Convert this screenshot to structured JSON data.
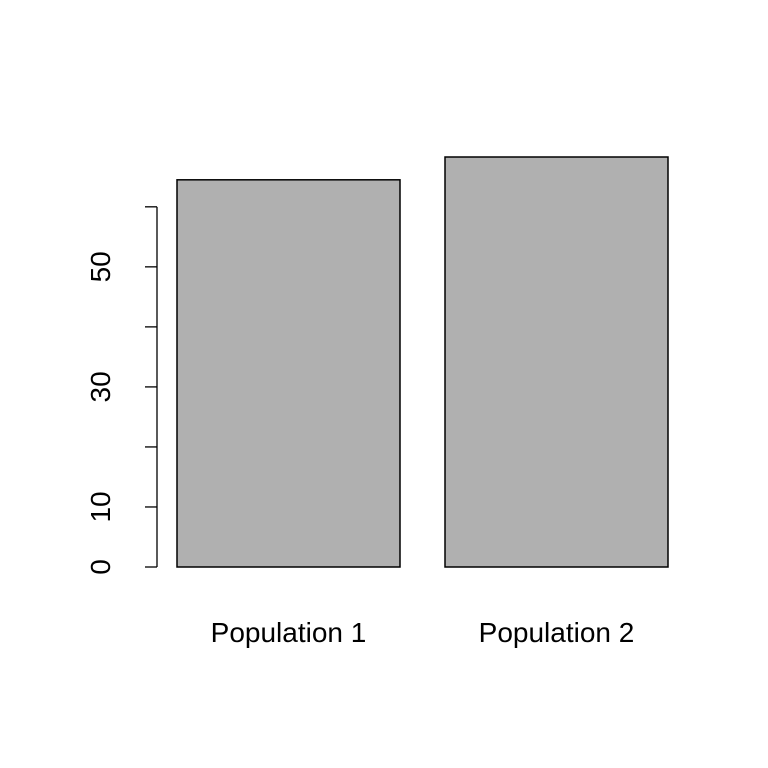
{
  "chart_data": {
    "type": "bar",
    "categories": [
      "Population 1",
      "Population 2"
    ],
    "values": [
      64.5,
      68.3
    ],
    "color": "#b0b0b0",
    "ylim": [
      0,
      68.3
    ],
    "yticks": [
      0,
      10,
      {
        "value": 20,
        "label": null
      },
      30,
      {
        "value": 40,
        "label": null
      },
      50,
      {
        "value": 60,
        "label": null
      }
    ]
  }
}
